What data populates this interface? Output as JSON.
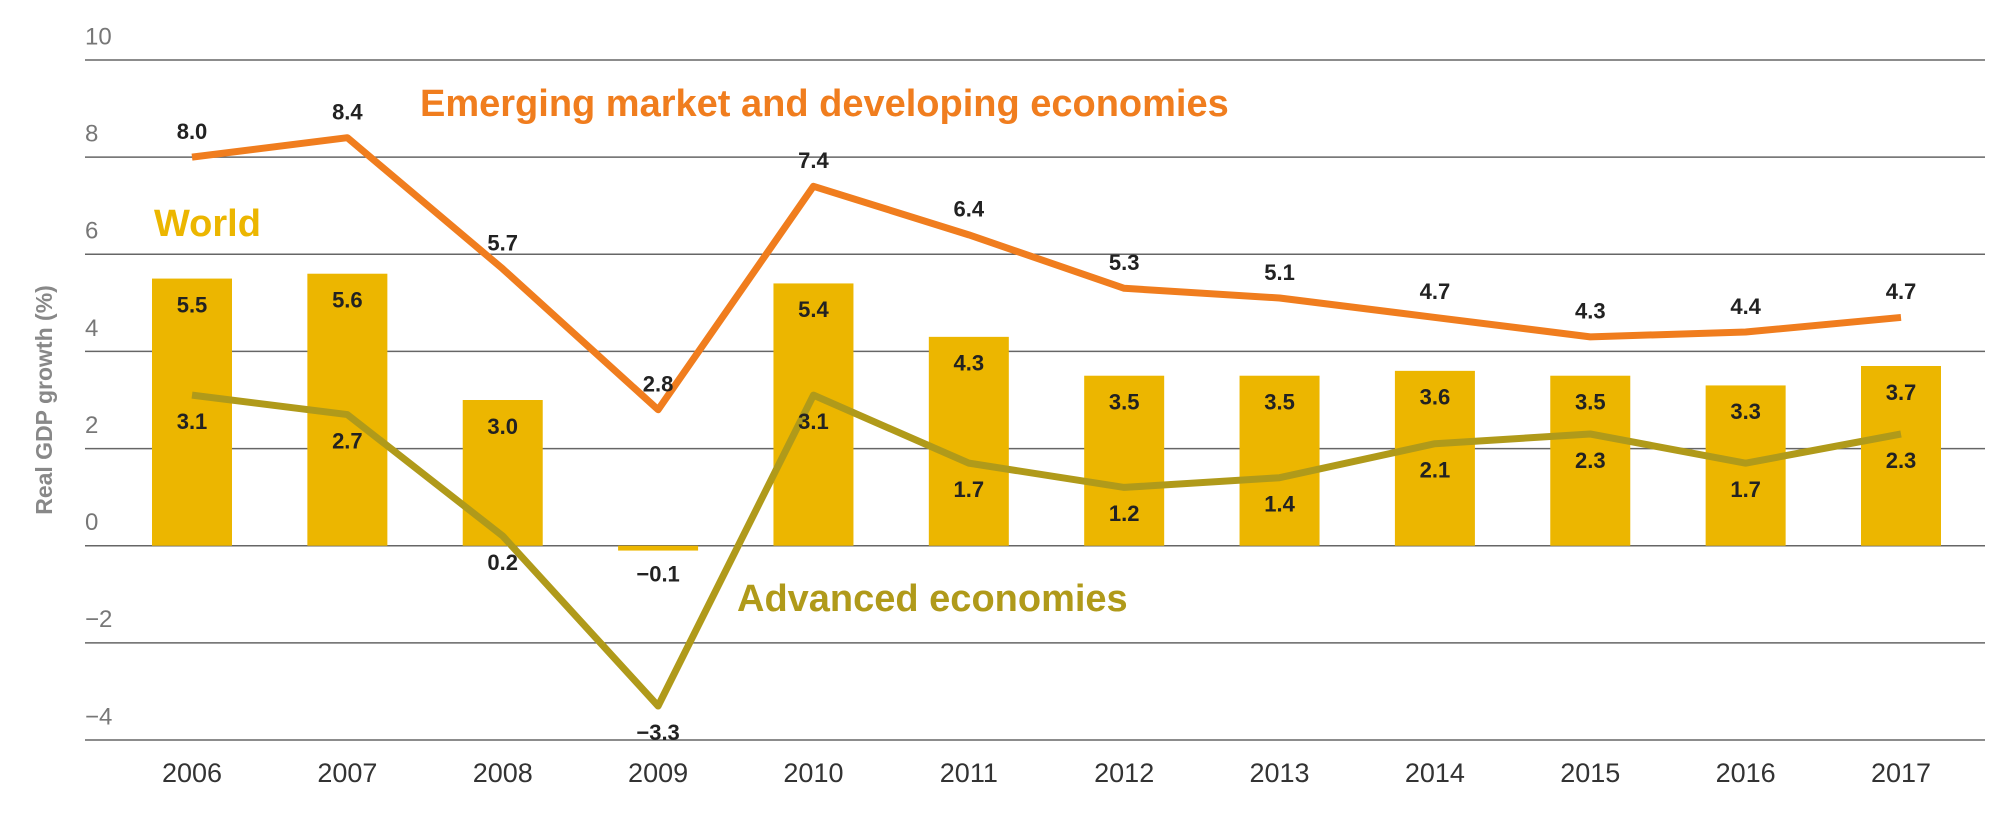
{
  "chart_data": {
    "type": "bar",
    "y_label": "Real GDP growth (%)",
    "categories": [
      "2006",
      "2007",
      "2008",
      "2009",
      "2010",
      "2011",
      "2012",
      "2013",
      "2014",
      "2015",
      "2016",
      "2017"
    ],
    "series": [
      {
        "name": "World",
        "type": "bar",
        "color": "#ecb600",
        "values": [
          5.5,
          5.6,
          3.0,
          -0.1,
          5.4,
          4.3,
          3.5,
          3.5,
          3.6,
          3.5,
          3.3,
          3.7
        ],
        "value_labels": [
          "5.5",
          "5.6",
          "3.0",
          "−0.1",
          "5.4",
          "4.3",
          "3.5",
          "3.5",
          "3.6",
          "3.5",
          "3.3",
          "3.7"
        ]
      },
      {
        "name": "Emerging market and developing economies",
        "type": "line",
        "color": "#f07d1e",
        "values": [
          8.0,
          8.4,
          5.7,
          2.8,
          7.4,
          6.4,
          5.3,
          5.1,
          4.7,
          4.3,
          4.4,
          4.7
        ],
        "value_labels": [
          "8.0",
          "8.4",
          "5.7",
          "2.8",
          "7.4",
          "6.4",
          "5.3",
          "5.1",
          "4.7",
          "4.3",
          "4.4",
          "4.7"
        ]
      },
      {
        "name": "Advanced economies",
        "type": "line",
        "color": "#b09a1a",
        "values": [
          3.1,
          2.7,
          0.2,
          -3.3,
          3.1,
          1.7,
          1.2,
          1.4,
          2.1,
          2.3,
          1.7,
          2.3
        ],
        "value_labels": [
          "3.1",
          "2.7",
          "0.2",
          "−3.3",
          "3.1",
          "1.7",
          "1.2",
          "1.4",
          "2.1",
          "2.3",
          "1.7",
          "2.3"
        ]
      }
    ],
    "ylim": [
      -4,
      10
    ],
    "yticks": [
      {
        "value": -4,
        "label": "−4"
      },
      {
        "value": -2,
        "label": "−2"
      },
      0,
      2,
      4,
      6,
      8,
      10
    ],
    "grid": true
  }
}
